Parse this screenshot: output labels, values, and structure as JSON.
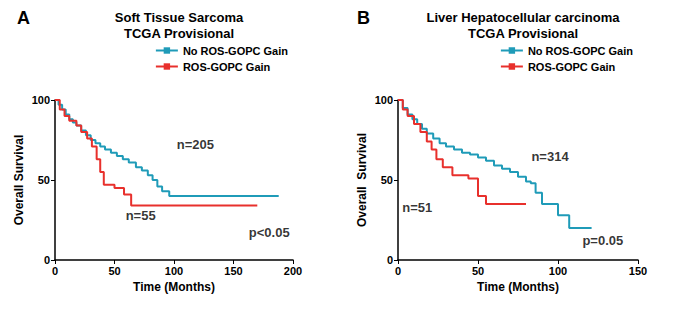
{
  "chart_data": [
    {
      "type": "line",
      "label": "A",
      "title": "Soft Tissue Sarcoma",
      "subtitle": "TCGA Provisional",
      "x_label": "Time (Months)",
      "y_label": "Overall Survival",
      "xlim": [
        0,
        200
      ],
      "xticks": [
        0,
        50,
        100,
        150,
        200
      ],
      "ylim": [
        0,
        100
      ],
      "yticks": [
        0,
        50,
        100
      ],
      "grid": false,
      "legend": "upper right",
      "line_style": "step",
      "series": [
        {
          "name": "No ROS-GOPC Gain",
          "color": "#1f9bb8",
          "x": [
            0,
            3,
            6,
            9,
            12,
            15,
            18,
            22,
            26,
            30,
            34,
            38,
            42,
            47,
            52,
            57,
            62,
            68,
            73,
            78,
            82,
            86,
            90,
            96,
            188
          ],
          "values": [
            100,
            97,
            94,
            91,
            88,
            86,
            84,
            81,
            78,
            75,
            73,
            71,
            69,
            67,
            65,
            63,
            61,
            58,
            56,
            53,
            50,
            46,
            43,
            40,
            40
          ]
        },
        {
          "name": "ROS-GOPC Gain",
          "color": "#e8302c",
          "x": [
            0,
            4,
            8,
            12,
            18,
            22,
            27,
            31,
            35,
            38,
            41,
            50,
            58,
            64,
            170
          ],
          "values": [
            100,
            94,
            90,
            87,
            84,
            80,
            76,
            71,
            63,
            55,
            47,
            45,
            41,
            34,
            34
          ]
        }
      ],
      "annotations": [
        {
          "text": "n=205",
          "x": 118,
          "y": 72
        },
        {
          "text": "n=55",
          "x": 72,
          "y": 28
        },
        {
          "text": "p<0.05",
          "x": 180,
          "y": 17
        }
      ]
    },
    {
      "type": "line",
      "label": "B",
      "title": "Liver Hepatocellular carcinoma",
      "subtitle": "TCGA Provisional",
      "x_label": "Time (Months)",
      "y_label": "Overall  Survival",
      "xlim": [
        0,
        150
      ],
      "xticks": [
        0,
        50,
        100,
        150
      ],
      "ylim": [
        0,
        100
      ],
      "yticks": [
        0,
        50,
        100
      ],
      "grid": false,
      "legend": "upper right",
      "line_style": "step",
      "series": [
        {
          "name": "No ROS-GOPC Gain",
          "color": "#1f9bb8",
          "x": [
            0,
            3,
            6,
            9,
            12,
            15,
            18,
            22,
            26,
            30,
            35,
            40,
            45,
            50,
            55,
            60,
            65,
            70,
            75,
            80,
            83,
            86,
            90,
            100,
            107,
            121
          ],
          "values": [
            100,
            95,
            91,
            88,
            85,
            82,
            79,
            76,
            73,
            71,
            69,
            67,
            66,
            64,
            62,
            59,
            57,
            55,
            52,
            49,
            48,
            42,
            35,
            28,
            20,
            20
          ]
        },
        {
          "name": "ROS-GOPC Gain",
          "color": "#e8302c",
          "x": [
            0,
            3,
            6,
            10,
            14,
            18,
            21,
            24,
            28,
            34,
            44,
            50,
            55,
            80
          ],
          "values": [
            100,
            94,
            90,
            85,
            80,
            74,
            69,
            63,
            58,
            53,
            51,
            40,
            35,
            35
          ]
        }
      ],
      "annotations": [
        {
          "text": "n=314",
          "x": 95,
          "y": 65
        },
        {
          "text": "n=51",
          "x": 12,
          "y": 33
        },
        {
          "text": "p=0.05",
          "x": 128,
          "y": 12
        }
      ]
    }
  ]
}
